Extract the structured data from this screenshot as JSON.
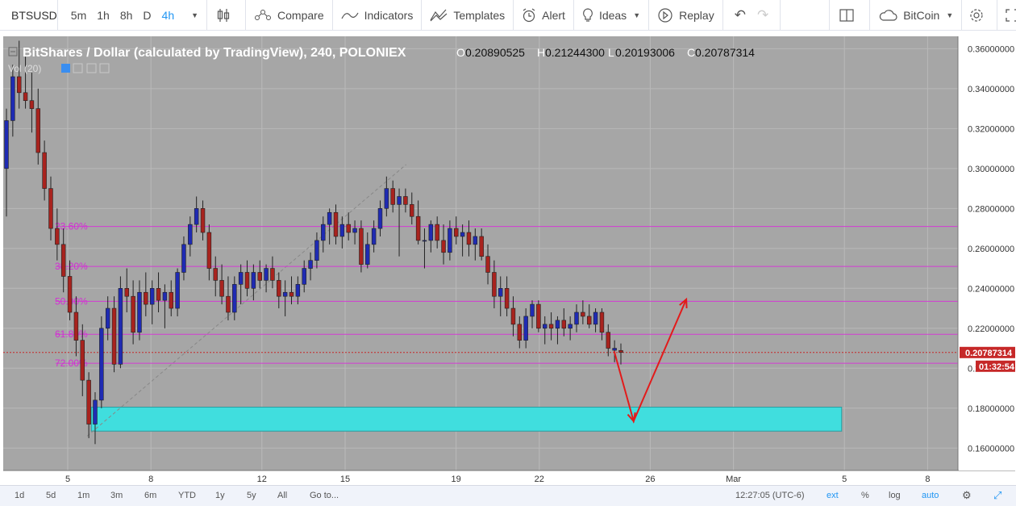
{
  "toolbar": {
    "symbol": "BTSUSD",
    "intervals": [
      "5m",
      "1h",
      "8h",
      "D",
      "4h"
    ],
    "active_interval": "4h",
    "compare": "Compare",
    "indicators": "Indicators",
    "templates": "Templates",
    "alert": "Alert",
    "ideas": "Ideas",
    "replay": "Replay",
    "account": "BitCoin"
  },
  "legend": {
    "title": "BitShares / Dollar (calculated by TradingView), 240, POLONIEX",
    "o_label": "O",
    "o": "0.20890525",
    "h_label": "H",
    "h": "0.21244300",
    "l_label": "L",
    "l": "0.20193006",
    "c_label": "C",
    "c": "0.20787314",
    "vol": "Vol (20)"
  },
  "chart_data": {
    "type": "candlestick",
    "symbol": "BTSUSD",
    "exchange": "POLONIEX",
    "interval": "240",
    "ylim": [
      0.15,
      0.365
    ],
    "y_ticks": [
      "0.16000000",
      "0.18000000",
      "0.20000000",
      "0.22000000",
      "0.24000000",
      "0.26000000",
      "0.28000000",
      "0.30000000",
      "0.32000000",
      "0.34000000",
      "0.36000000"
    ],
    "x_ticks": [
      {
        "label": "5",
        "day": 5
      },
      {
        "label": "8",
        "day": 8
      },
      {
        "label": "12",
        "day": 12
      },
      {
        "label": "15",
        "day": 15
      },
      {
        "label": "19",
        "day": 19
      },
      {
        "label": "22",
        "day": 22
      },
      {
        "label": "26",
        "day": 26
      },
      {
        "label": "Mar",
        "day": 29
      },
      {
        "label": "5",
        "day": 33
      },
      {
        "label": "8",
        "day": 36
      }
    ],
    "last_price": "0.20787314",
    "countdown": "01:32:54",
    "fib_levels": [
      {
        "label": "23.60%",
        "price": 0.271
      },
      {
        "label": "38.20%",
        "price": 0.251
      },
      {
        "label": "50.00%",
        "price": 0.2335
      },
      {
        "label": "61.80%",
        "price": 0.217
      },
      {
        "label": "72.00%",
        "price": 0.2025
      }
    ],
    "trend_line": {
      "from": {
        "day": 5.7,
        "price": 0.166
      },
      "to": {
        "day": 17.2,
        "price": 0.302
      }
    },
    "support_zone": {
      "day_start": 5.85,
      "day_end": 32.9,
      "price_low": 0.1685,
      "price_high": 0.1805
    },
    "projection": [
      {
        "day": 24.7,
        "price": 0.2085
      },
      {
        "day": 25.4,
        "price": 0.1735
      },
      {
        "day": 27.3,
        "price": 0.2345
      }
    ],
    "candles": [
      {
        "o": 0.3,
        "h": 0.33,
        "l": 0.276,
        "c": 0.324,
        "up": true
      },
      {
        "o": 0.324,
        "h": 0.352,
        "l": 0.316,
        "c": 0.346,
        "up": true
      },
      {
        "o": 0.346,
        "h": 0.364,
        "l": 0.33,
        "c": 0.338,
        "up": false
      },
      {
        "o": 0.338,
        "h": 0.356,
        "l": 0.33,
        "c": 0.334,
        "up": false
      },
      {
        "o": 0.334,
        "h": 0.348,
        "l": 0.318,
        "c": 0.33,
        "up": false
      },
      {
        "o": 0.33,
        "h": 0.34,
        "l": 0.302,
        "c": 0.308,
        "up": false
      },
      {
        "o": 0.308,
        "h": 0.314,
        "l": 0.284,
        "c": 0.29,
        "up": false
      },
      {
        "o": 0.29,
        "h": 0.296,
        "l": 0.264,
        "c": 0.27,
        "up": false
      },
      {
        "o": 0.27,
        "h": 0.28,
        "l": 0.254,
        "c": 0.262,
        "up": false
      },
      {
        "o": 0.262,
        "h": 0.27,
        "l": 0.238,
        "c": 0.246,
        "up": false
      },
      {
        "o": 0.246,
        "h": 0.254,
        "l": 0.224,
        "c": 0.228,
        "up": false
      },
      {
        "o": 0.228,
        "h": 0.236,
        "l": 0.206,
        "c": 0.214,
        "up": false
      },
      {
        "o": 0.214,
        "h": 0.222,
        "l": 0.186,
        "c": 0.194,
        "up": false
      },
      {
        "o": 0.194,
        "h": 0.198,
        "l": 0.165,
        "c": 0.172,
        "up": false
      },
      {
        "o": 0.172,
        "h": 0.188,
        "l": 0.162,
        "c": 0.184,
        "up": true
      },
      {
        "o": 0.184,
        "h": 0.226,
        "l": 0.18,
        "c": 0.22,
        "up": true
      },
      {
        "o": 0.22,
        "h": 0.236,
        "l": 0.214,
        "c": 0.23,
        "up": true
      },
      {
        "o": 0.23,
        "h": 0.236,
        "l": 0.198,
        "c": 0.202,
        "up": false
      },
      {
        "o": 0.202,
        "h": 0.246,
        "l": 0.2,
        "c": 0.24,
        "up": true
      },
      {
        "o": 0.24,
        "h": 0.25,
        "l": 0.228,
        "c": 0.236,
        "up": false
      },
      {
        "o": 0.236,
        "h": 0.244,
        "l": 0.212,
        "c": 0.218,
        "up": false
      },
      {
        "o": 0.218,
        "h": 0.244,
        "l": 0.214,
        "c": 0.238,
        "up": true
      },
      {
        "o": 0.238,
        "h": 0.248,
        "l": 0.226,
        "c": 0.232,
        "up": false
      },
      {
        "o": 0.232,
        "h": 0.244,
        "l": 0.222,
        "c": 0.24,
        "up": true
      },
      {
        "o": 0.24,
        "h": 0.248,
        "l": 0.228,
        "c": 0.234,
        "up": false
      },
      {
        "o": 0.234,
        "h": 0.242,
        "l": 0.22,
        "c": 0.238,
        "up": true
      },
      {
        "o": 0.238,
        "h": 0.244,
        "l": 0.226,
        "c": 0.23,
        "up": false
      },
      {
        "o": 0.23,
        "h": 0.25,
        "l": 0.226,
        "c": 0.248,
        "up": true
      },
      {
        "o": 0.248,
        "h": 0.266,
        "l": 0.244,
        "c": 0.262,
        "up": true
      },
      {
        "o": 0.262,
        "h": 0.276,
        "l": 0.256,
        "c": 0.272,
        "up": true
      },
      {
        "o": 0.272,
        "h": 0.286,
        "l": 0.268,
        "c": 0.28,
        "up": true
      },
      {
        "o": 0.28,
        "h": 0.284,
        "l": 0.264,
        "c": 0.268,
        "up": false
      },
      {
        "o": 0.268,
        "h": 0.272,
        "l": 0.244,
        "c": 0.25,
        "up": false
      },
      {
        "o": 0.25,
        "h": 0.256,
        "l": 0.236,
        "c": 0.244,
        "up": false
      },
      {
        "o": 0.244,
        "h": 0.252,
        "l": 0.232,
        "c": 0.236,
        "up": false
      },
      {
        "o": 0.236,
        "h": 0.246,
        "l": 0.224,
        "c": 0.228,
        "up": false
      },
      {
        "o": 0.228,
        "h": 0.246,
        "l": 0.224,
        "c": 0.242,
        "up": true
      },
      {
        "o": 0.242,
        "h": 0.252,
        "l": 0.232,
        "c": 0.248,
        "up": true
      },
      {
        "o": 0.248,
        "h": 0.254,
        "l": 0.236,
        "c": 0.24,
        "up": false
      },
      {
        "o": 0.24,
        "h": 0.252,
        "l": 0.234,
        "c": 0.248,
        "up": true
      },
      {
        "o": 0.248,
        "h": 0.254,
        "l": 0.24,
        "c": 0.244,
        "up": false
      },
      {
        "o": 0.244,
        "h": 0.252,
        "l": 0.238,
        "c": 0.25,
        "up": true
      },
      {
        "o": 0.25,
        "h": 0.256,
        "l": 0.24,
        "c": 0.244,
        "up": false
      },
      {
        "o": 0.244,
        "h": 0.248,
        "l": 0.23,
        "c": 0.236,
        "up": false
      },
      {
        "o": 0.236,
        "h": 0.244,
        "l": 0.226,
        "c": 0.238,
        "up": true
      },
      {
        "o": 0.238,
        "h": 0.246,
        "l": 0.232,
        "c": 0.236,
        "up": false
      },
      {
        "o": 0.236,
        "h": 0.246,
        "l": 0.232,
        "c": 0.242,
        "up": true
      },
      {
        "o": 0.242,
        "h": 0.254,
        "l": 0.238,
        "c": 0.25,
        "up": true
      },
      {
        "o": 0.25,
        "h": 0.258,
        "l": 0.244,
        "c": 0.254,
        "up": true
      },
      {
        "o": 0.254,
        "h": 0.268,
        "l": 0.25,
        "c": 0.264,
        "up": true
      },
      {
        "o": 0.264,
        "h": 0.276,
        "l": 0.258,
        "c": 0.272,
        "up": true
      },
      {
        "o": 0.272,
        "h": 0.28,
        "l": 0.262,
        "c": 0.278,
        "up": true
      },
      {
        "o": 0.278,
        "h": 0.282,
        "l": 0.262,
        "c": 0.266,
        "up": false
      },
      {
        "o": 0.266,
        "h": 0.276,
        "l": 0.26,
        "c": 0.272,
        "up": true
      },
      {
        "o": 0.272,
        "h": 0.278,
        "l": 0.264,
        "c": 0.268,
        "up": false
      },
      {
        "o": 0.268,
        "h": 0.274,
        "l": 0.262,
        "c": 0.27,
        "up": true
      },
      {
        "o": 0.27,
        "h": 0.274,
        "l": 0.248,
        "c": 0.252,
        "up": false
      },
      {
        "o": 0.252,
        "h": 0.268,
        "l": 0.25,
        "c": 0.262,
        "up": true
      },
      {
        "o": 0.262,
        "h": 0.274,
        "l": 0.258,
        "c": 0.27,
        "up": true
      },
      {
        "o": 0.27,
        "h": 0.284,
        "l": 0.266,
        "c": 0.28,
        "up": true
      },
      {
        "o": 0.28,
        "h": 0.296,
        "l": 0.276,
        "c": 0.29,
        "up": true
      },
      {
        "o": 0.29,
        "h": 0.294,
        "l": 0.278,
        "c": 0.282,
        "up": false
      },
      {
        "o": 0.282,
        "h": 0.29,
        "l": 0.256,
        "c": 0.286,
        "up": true
      },
      {
        "o": 0.286,
        "h": 0.29,
        "l": 0.278,
        "c": 0.282,
        "up": false
      },
      {
        "o": 0.282,
        "h": 0.288,
        "l": 0.272,
        "c": 0.276,
        "up": false
      },
      {
        "o": 0.276,
        "h": 0.284,
        "l": 0.262,
        "c": 0.264,
        "up": false
      },
      {
        "o": 0.264,
        "h": 0.27,
        "l": 0.25,
        "c": 0.264,
        "up": true
      },
      {
        "o": 0.264,
        "h": 0.274,
        "l": 0.258,
        "c": 0.272,
        "up": true
      },
      {
        "o": 0.272,
        "h": 0.276,
        "l": 0.26,
        "c": 0.264,
        "up": false
      },
      {
        "o": 0.264,
        "h": 0.272,
        "l": 0.252,
        "c": 0.258,
        "up": false
      },
      {
        "o": 0.258,
        "h": 0.274,
        "l": 0.254,
        "c": 0.27,
        "up": true
      },
      {
        "o": 0.27,
        "h": 0.276,
        "l": 0.262,
        "c": 0.266,
        "up": false
      },
      {
        "o": 0.266,
        "h": 0.272,
        "l": 0.256,
        "c": 0.268,
        "up": true
      },
      {
        "o": 0.268,
        "h": 0.274,
        "l": 0.256,
        "c": 0.262,
        "up": false
      },
      {
        "o": 0.262,
        "h": 0.27,
        "l": 0.254,
        "c": 0.266,
        "up": true
      },
      {
        "o": 0.266,
        "h": 0.27,
        "l": 0.254,
        "c": 0.256,
        "up": false
      },
      {
        "o": 0.256,
        "h": 0.262,
        "l": 0.242,
        "c": 0.248,
        "up": false
      },
      {
        "o": 0.248,
        "h": 0.254,
        "l": 0.23,
        "c": 0.236,
        "up": false
      },
      {
        "o": 0.236,
        "h": 0.246,
        "l": 0.226,
        "c": 0.24,
        "up": true
      },
      {
        "o": 0.24,
        "h": 0.246,
        "l": 0.226,
        "c": 0.23,
        "up": false
      },
      {
        "o": 0.23,
        "h": 0.236,
        "l": 0.216,
        "c": 0.222,
        "up": false
      },
      {
        "o": 0.222,
        "h": 0.226,
        "l": 0.21,
        "c": 0.214,
        "up": false
      },
      {
        "o": 0.214,
        "h": 0.23,
        "l": 0.21,
        "c": 0.226,
        "up": true
      },
      {
        "o": 0.226,
        "h": 0.234,
        "l": 0.22,
        "c": 0.232,
        "up": true
      },
      {
        "o": 0.232,
        "h": 0.234,
        "l": 0.218,
        "c": 0.22,
        "up": false
      },
      {
        "o": 0.22,
        "h": 0.226,
        "l": 0.212,
        "c": 0.222,
        "up": true
      },
      {
        "o": 0.222,
        "h": 0.228,
        "l": 0.214,
        "c": 0.22,
        "up": false
      },
      {
        "o": 0.22,
        "h": 0.226,
        "l": 0.212,
        "c": 0.224,
        "up": true
      },
      {
        "o": 0.224,
        "h": 0.23,
        "l": 0.216,
        "c": 0.22,
        "up": false
      },
      {
        "o": 0.22,
        "h": 0.226,
        "l": 0.214,
        "c": 0.222,
        "up": true
      },
      {
        "o": 0.222,
        "h": 0.232,
        "l": 0.218,
        "c": 0.228,
        "up": true
      },
      {
        "o": 0.228,
        "h": 0.234,
        "l": 0.222,
        "c": 0.226,
        "up": false
      },
      {
        "o": 0.226,
        "h": 0.232,
        "l": 0.22,
        "c": 0.222,
        "up": false
      },
      {
        "o": 0.222,
        "h": 0.23,
        "l": 0.218,
        "c": 0.228,
        "up": true
      },
      {
        "o": 0.228,
        "h": 0.23,
        "l": 0.214,
        "c": 0.218,
        "up": false
      },
      {
        "o": 0.218,
        "h": 0.222,
        "l": 0.206,
        "c": 0.21,
        "up": false
      },
      {
        "o": 0.21,
        "h": 0.214,
        "l": 0.203,
        "c": 0.209,
        "up": true
      },
      {
        "o": 0.2089,
        "h": 0.2124,
        "l": 0.2019,
        "c": 0.2079,
        "up": false
      }
    ]
  },
  "axis_labels": {
    "price_tag": "0.20787314",
    "countdown": "01:32:54"
  },
  "bottom": {
    "ranges": [
      "1d",
      "5d",
      "1m",
      "3m",
      "6m",
      "YTD",
      "1y",
      "5y",
      "All"
    ],
    "goto": "Go to...",
    "time": "12:27:05 (UTC-6)",
    "ext": "ext",
    "pct": "%",
    "log": "log",
    "auto": "auto"
  },
  "colors": {
    "chart_bg": "#a6a6a6",
    "up_candle": "#1f2bb3",
    "down_candle": "#a8231e",
    "fib_line": "#d43bd4",
    "fib_text": "#d32fd3",
    "zone_fill": "#40dede",
    "arrow": "#e21b1b",
    "last_price_bg": "#c62828",
    "accent": "#2196f3"
  }
}
